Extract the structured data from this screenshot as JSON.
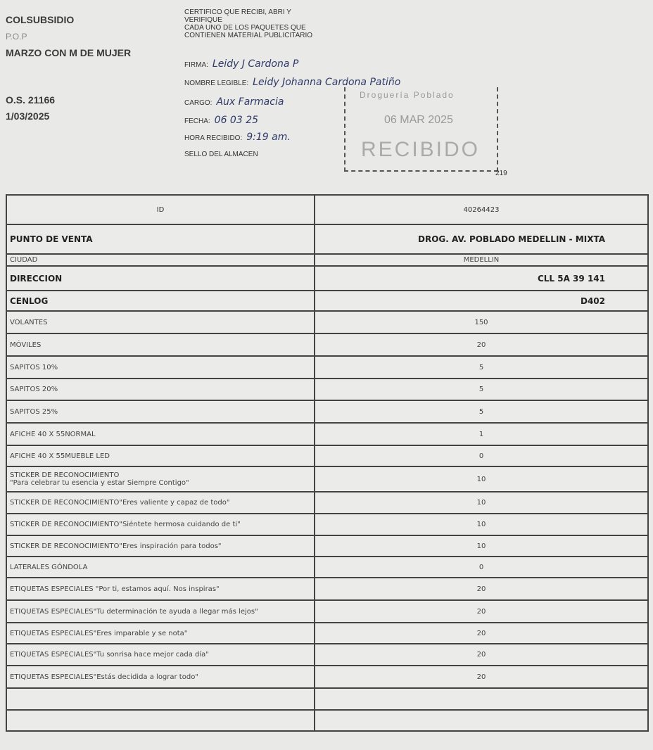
{
  "header_left": {
    "company": "COLSUBSIDIO",
    "code": "P.O.P",
    "campaign": "MARZO CON M DE MUJER",
    "order": "O.S. 21166",
    "date": "1/03/2025"
  },
  "certificate": {
    "text_lines": [
      "CERTIFICO QUE RECIBI, ABRI Y",
      "VERIFIQUE",
      "CADA  UNO DE LOS PAQUETES QUE",
      "CONTIENEN MATERIAL PUBLICITARIO"
    ],
    "firma_label": "FIRMA:",
    "firma_value": "Leidy J Cardona P",
    "nombre_label": "NOMBRE LEGIBLE:",
    "nombre_value": "Leidy Johanna Cardona Patiño",
    "cargo_label": "CARGO:",
    "cargo_value": "Aux Farmacia",
    "fecha_label": "FECHA:",
    "fecha_value": "06 03 25",
    "hora_label": "HORA RECIBIDO:",
    "hora_value": "9:19 am.",
    "sello_label": "SELLO DEL ALMACEN"
  },
  "stamp": {
    "line1": "Droguería  Poblado",
    "line2": "06 MAR 2025",
    "line3": "RECIBIDO",
    "number": "219"
  },
  "table": {
    "header": {
      "label": "ID",
      "value": "40264423"
    },
    "rows": [
      {
        "label": "PUNTO DE VENTA",
        "value": "DROG. AV. POBLADO MEDELLIN - MIXTA",
        "style": "big"
      },
      {
        "label": "CIUDAD",
        "value": "MEDELLIN",
        "style": "small"
      },
      {
        "label": "DIRECCION",
        "value": "CLL 5A 39 141",
        "style": "big"
      },
      {
        "label": "CENLOG",
        "value": "D402",
        "style": "big"
      },
      {
        "label": "VOLANTES",
        "value": "150"
      },
      {
        "label": "MÓVILES",
        "value": "20"
      },
      {
        "label": "SAPITOS 10%",
        "value": "5"
      },
      {
        "label": "SAPITOS 20%",
        "value": "5"
      },
      {
        "label": "SAPITOS 25%",
        "value": "5"
      },
      {
        "label": "AFICHE 40 X 55NORMAL",
        "value": "1"
      },
      {
        "label": "AFICHE 40 X 55MUEBLE LED",
        "value": "0"
      },
      {
        "label": "STICKER DE RECONOCIMIENTO\n\"Para celebrar tu esencia y estar Siempre Contigo\"",
        "value": "10"
      },
      {
        "label": "STICKER DE RECONOCIMIENTO\"Eres valiente y capaz de todo\"",
        "value": "10"
      },
      {
        "label": "STICKER DE RECONOCIMIENTO\"Siéntete hermosa cuidando de ti\"",
        "value": "10"
      },
      {
        "label": "STICKER DE RECONOCIMIENTO\"Eres inspiración para todos\"",
        "value": "10"
      },
      {
        "label": "LATERALES GÓNDOLA",
        "value": "0"
      },
      {
        "label": "ETIQUETAS ESPECIALES \"Por ti, estamos aquí. Nos inspiras\"",
        "value": "20"
      },
      {
        "label": "ETIQUETAS ESPECIALES\"Tu determinación te ayuda a llegar más lejos\"",
        "value": "20"
      },
      {
        "label": "ETIQUETAS ESPECIALES\"Eres imparable y se nota\"",
        "value": "20"
      },
      {
        "label": "ETIQUETAS ESPECIALES\"Tu sonrisa hace mejor cada día\"",
        "value": "20"
      },
      {
        "label": "ETIQUETAS ESPECIALES\"Estás decidida a lograr todo\"",
        "value": "20"
      },
      {
        "label": "",
        "value": ""
      },
      {
        "label": "",
        "value": ""
      }
    ]
  }
}
